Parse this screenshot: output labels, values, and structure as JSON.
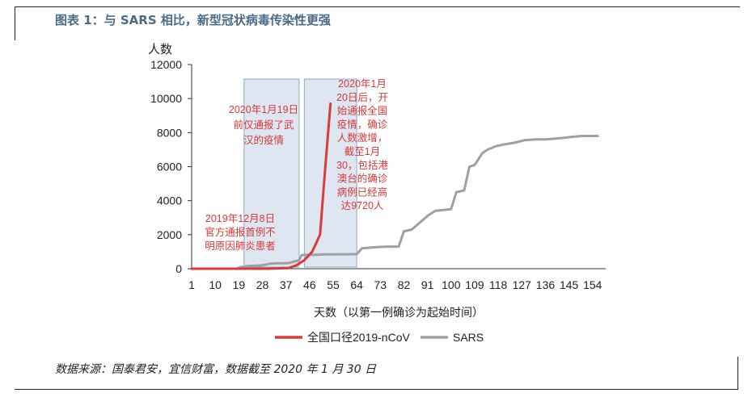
{
  "figure": {
    "title": "图表 1：与 SARS 相比，新型冠状病毒传染性更强",
    "source": "数据来源：国泰君安，宜信财富，数据截至 2020 年 1 月 30 日"
  },
  "chart_data": {
    "type": "line",
    "xlabel": "天数（以第一例确诊为起始时间）",
    "ylabel": "人数",
    "xlim": [
      1,
      159
    ],
    "ylim": [
      0,
      12000
    ],
    "x_ticks": [
      1,
      10,
      19,
      28,
      37,
      46,
      55,
      64,
      73,
      82,
      91,
      100,
      109,
      118,
      127,
      136,
      145,
      154
    ],
    "y_ticks": [
      0,
      2000,
      4000,
      6000,
      8000,
      10000,
      12000
    ],
    "legend_position": "bottom",
    "grid": false,
    "series": [
      {
        "name": "全国口径2019-nCoV",
        "color": "#d93a3a",
        "x": [
          1,
          10,
          20,
          30,
          38,
          41,
          44,
          47,
          50,
          52,
          54
        ],
        "y": [
          0,
          0,
          0,
          0,
          40,
          200,
          500,
          1000,
          2000,
          6000,
          9700
        ]
      },
      {
        "name": "SARS",
        "color": "#a0a0a0",
        "x": [
          1,
          18,
          20,
          22,
          26,
          28,
          31,
          33,
          36,
          38,
          42,
          43,
          46,
          48,
          50,
          52,
          55,
          58,
          61,
          64,
          66,
          70,
          73,
          76,
          80,
          82,
          85,
          88,
          91,
          94,
          97,
          100,
          102,
          105,
          107,
          109,
          112,
          114,
          117,
          120,
          124,
          128,
          132,
          136,
          140,
          143,
          146,
          150,
          156
        ],
        "y": [
          0,
          0,
          100,
          150,
          180,
          200,
          300,
          320,
          320,
          330,
          500,
          800,
          820,
          820,
          830,
          840,
          840,
          850,
          850,
          860,
          1200,
          1250,
          1280,
          1300,
          1300,
          2200,
          2300,
          2700,
          3100,
          3400,
          3450,
          3500,
          4500,
          4600,
          6000,
          6100,
          6800,
          7000,
          7200,
          7300,
          7400,
          7550,
          7600,
          7600,
          7650,
          7700,
          7750,
          7800,
          7800
        ]
      }
    ],
    "shaded_regions": [
      {
        "x_start": 21,
        "x_end": 42
      },
      {
        "x_start": 44,
        "x_end": 64
      }
    ],
    "annotations": [
      {
        "text_lines": [
          "2020年1月19日",
          "前仅通报了武",
          "汉的疫情"
        ],
        "color": "#d93a3a"
      },
      {
        "text_lines": [
          "2020年1月",
          "20日后，开",
          "始通报全国",
          "疫情，确诊",
          "人数激增，",
          "截至1月",
          "30，包括港",
          "澳台的确诊",
          "病例已经高",
          "达9720人"
        ],
        "color": "#d93a3a"
      },
      {
        "text_lines": [
          "2019年12月8日",
          "官方通报首例不",
          "明原因肺炎患者"
        ],
        "color": "#d93a3a"
      }
    ]
  }
}
